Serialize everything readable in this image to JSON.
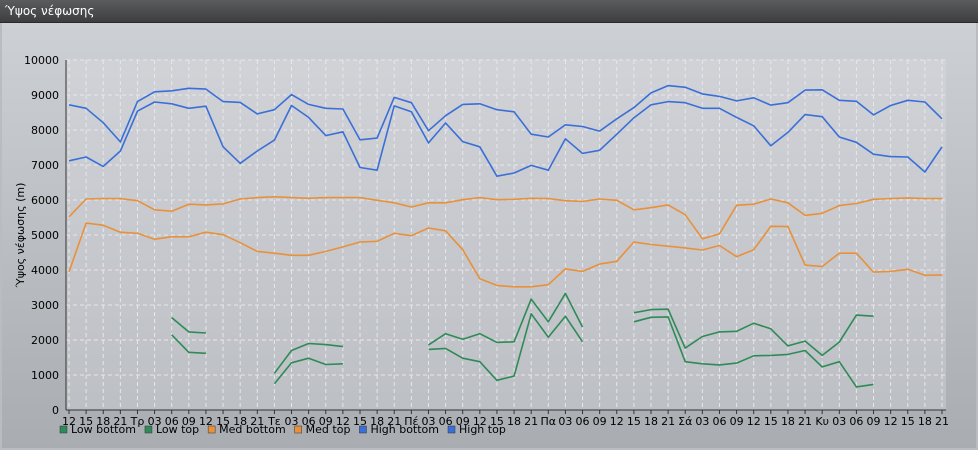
{
  "window": {
    "title": "Ύψος νέφωσης"
  },
  "chart_data": {
    "type": "line",
    "title": "",
    "xlabel": "",
    "ylabel": "Ύψος νέφωσης (m)",
    "ylim": [
      0,
      10000
    ],
    "yticks": [
      0,
      1000,
      2000,
      3000,
      4000,
      5000,
      6000,
      7000,
      8000,
      9000,
      10000
    ],
    "grid": true,
    "legend_position": "bottom-left",
    "categories": [
      "12",
      "15",
      "18",
      "21",
      "Τρ",
      "03",
      "06",
      "09",
      "12",
      "15",
      "18",
      "21",
      "Τε",
      "03",
      "06",
      "09",
      "12",
      "15",
      "18",
      "21",
      "Πέ",
      "03",
      "06",
      "09",
      "12",
      "15",
      "18",
      "21",
      "Πα",
      "03",
      "06",
      "09",
      "12",
      "15",
      "18",
      "21",
      "Σά",
      "03",
      "06",
      "09",
      "12",
      "15",
      "18",
      "21",
      "Κυ",
      "03",
      "06",
      "09",
      "12",
      "15",
      "18",
      "21"
    ],
    "series": [
      {
        "name": "Low bottom",
        "color": "#2e8b57",
        "values": [
          null,
          null,
          null,
          null,
          null,
          null,
          2150,
          1650,
          1620,
          null,
          null,
          null,
          750,
          1350,
          1480,
          1300,
          1320,
          null,
          null,
          null,
          null,
          1730,
          1760,
          1480,
          1380,
          850,
          970,
          2750,
          2080,
          2680,
          1950,
          null,
          null,
          2520,
          2650,
          2660,
          1380,
          1320,
          1290,
          1340,
          1550,
          1560,
          1590,
          1700,
          1230,
          1380,
          660,
          730,
          null,
          null,
          null,
          null
        ]
      },
      {
        "name": "Low top",
        "color": "#2e8b57",
        "values": [
          null,
          null,
          null,
          null,
          null,
          null,
          2640,
          2230,
          2200,
          null,
          null,
          null,
          1050,
          1700,
          1900,
          1870,
          1810,
          null,
          null,
          null,
          null,
          1860,
          2180,
          2020,
          2180,
          1930,
          1950,
          3170,
          2520,
          3330,
          2370,
          null,
          null,
          2780,
          2870,
          2880,
          1770,
          2100,
          2230,
          2250,
          2480,
          2320,
          1830,
          1970,
          1560,
          1940,
          2710,
          2680,
          null,
          null,
          null,
          null
        ]
      },
      {
        "name": "Med bottom",
        "color": "#e8913a",
        "values": [
          3950,
          5340,
          5280,
          5080,
          5050,
          4880,
          4950,
          4950,
          5080,
          5010,
          4780,
          4530,
          4480,
          4420,
          4420,
          4530,
          4660,
          4800,
          4820,
          5050,
          4980,
          5200,
          5120,
          4580,
          3750,
          3560,
          3520,
          3520,
          3580,
          4030,
          3960,
          4170,
          4250,
          4800,
          4730,
          4680,
          4630,
          4570,
          4700,
          4380,
          4580,
          5250,
          5240,
          4140,
          4100,
          4480,
          4480,
          3940,
          3960,
          4020,
          3850,
          3860
        ]
      },
      {
        "name": "Med top",
        "color": "#e8913a",
        "values": [
          5520,
          6030,
          6040,
          6040,
          5980,
          5720,
          5680,
          5880,
          5860,
          5890,
          6030,
          6070,
          6090,
          6070,
          6050,
          6070,
          6070,
          6070,
          5990,
          5920,
          5800,
          5920,
          5920,
          6010,
          6070,
          6010,
          6020,
          6050,
          6040,
          5980,
          5960,
          6030,
          5990,
          5720,
          5780,
          5860,
          5580,
          4890,
          5030,
          5850,
          5880,
          6030,
          5920,
          5560,
          5620,
          5840,
          5900,
          6020,
          6040,
          6060,
          6040,
          6040
        ]
      },
      {
        "name": "High bottom",
        "color": "#3a6fd8",
        "values": [
          7120,
          7230,
          6960,
          7400,
          8540,
          8800,
          8750,
          8620,
          8680,
          7520,
          7050,
          7400,
          7710,
          8700,
          8360,
          7840,
          7950,
          6930,
          6850,
          8690,
          8520,
          7630,
          8200,
          7670,
          7520,
          6680,
          6770,
          6990,
          6850,
          7750,
          7330,
          7420,
          7880,
          8350,
          8720,
          8810,
          8780,
          8620,
          8620,
          8360,
          8120,
          7550,
          7930,
          8440,
          8380,
          7800,
          7650,
          7310,
          7240,
          7230,
          6800,
          7520
        ]
      },
      {
        "name": "High top",
        "color": "#3a6fd8",
        "values": [
          8720,
          8620,
          8210,
          7660,
          8810,
          9090,
          9120,
          9190,
          9170,
          8810,
          8790,
          8460,
          8580,
          9010,
          8730,
          8620,
          8600,
          7720,
          7770,
          8930,
          8780,
          7980,
          8410,
          8730,
          8750,
          8580,
          8520,
          7880,
          7800,
          8150,
          8100,
          7970,
          8320,
          8640,
          9060,
          9270,
          9220,
          9030,
          8960,
          8830,
          8920,
          8710,
          8780,
          9140,
          9150,
          8850,
          8820,
          8430,
          8700,
          8850,
          8800,
          8320
        ]
      }
    ]
  }
}
